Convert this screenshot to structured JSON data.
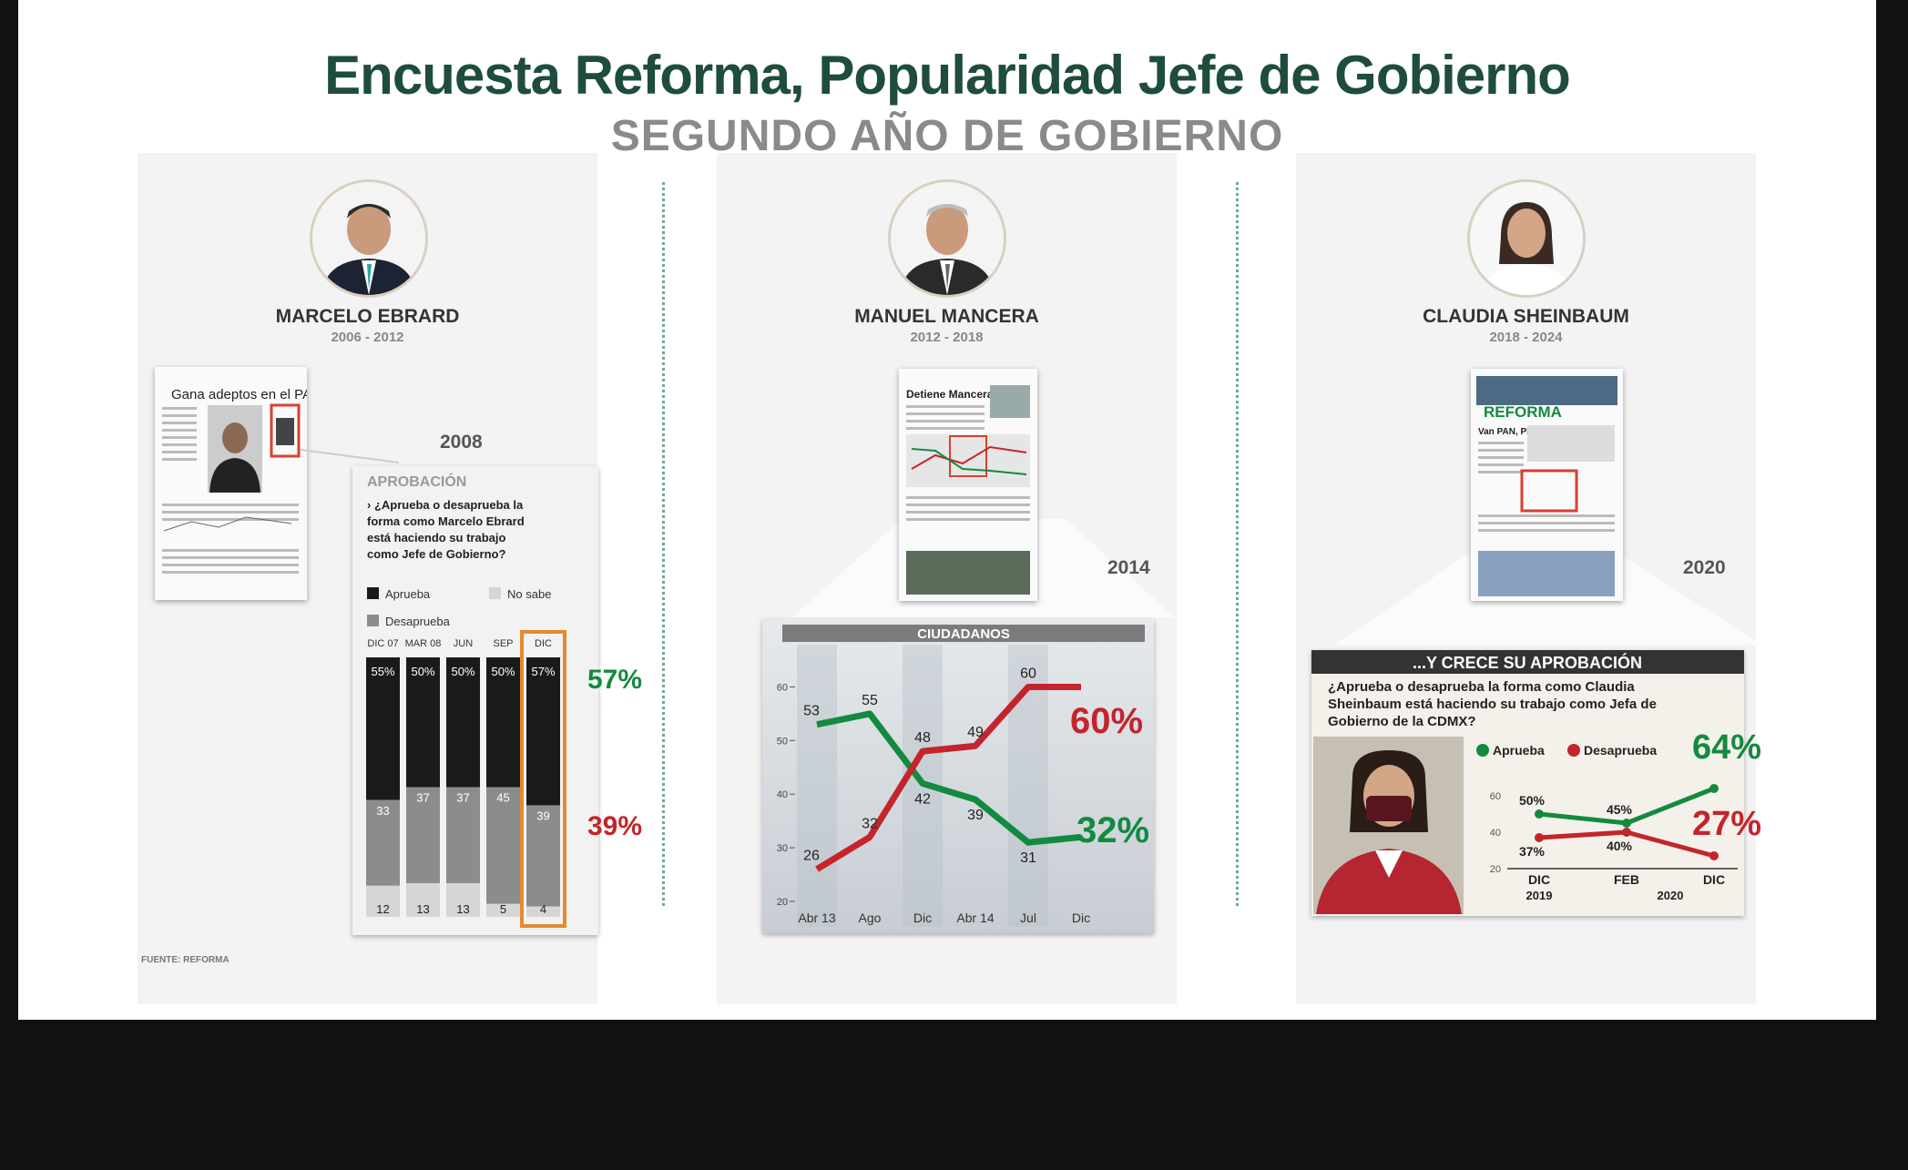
{
  "title": "Encuesta Reforma, Popularidad Jefe de Gobierno",
  "subtitle": "SEGUNDO AÑO DE GOBIERNO",
  "footer": "FUENTE: REFORMA",
  "colors": {
    "green": "#138a3f",
    "red": "#c4242b",
    "dark_green": "#1e4d3a",
    "orange": "#e38b2e"
  },
  "panels": [
    {
      "name": "MARCELO EBRARD",
      "years": "2006 - 2012",
      "survey_year": "2008",
      "newspaper_headline": "Gana adeptos en el PAN",
      "approve": "57%",
      "disapprove": "39%"
    },
    {
      "name": "MANUEL MANCERA",
      "years": "2012 - 2018",
      "survey_year": "2014",
      "newspaper_headline": "Detiene Mancera caída",
      "approve": "32%",
      "disapprove": "60%"
    },
    {
      "name": "CLAUDIA SHEINBAUM",
      "years": "2018 - 2024",
      "survey_year": "2020",
      "newspaper_masthead": "REFORMA",
      "newspaper_headline": "Van PAN, PRI y PRD en alianza",
      "approve": "64%",
      "disapprove": "27%"
    }
  ],
  "chart_data": [
    {
      "type": "bar",
      "subtype": "stacked",
      "title": "APROBACIÓN",
      "question": "› ¿Aprueba o desaprueba la forma como Marcelo Ebrard está haciendo su trabajo como Jefe de Gobierno?",
      "legend": [
        "Aprueba",
        "No sabe",
        "Desaprueba"
      ],
      "categories": [
        "DIC 07",
        "MAR 08",
        "JUN",
        "SEP",
        "DIC"
      ],
      "series": [
        {
          "name": "Aprueba",
          "values": [
            55,
            50,
            50,
            50,
            57
          ],
          "color": "#1a1a1a"
        },
        {
          "name": "Desaprueba",
          "values": [
            33,
            37,
            37,
            45,
            39
          ],
          "color": "#8c8c8c"
        },
        {
          "name": "No sabe",
          "values": [
            12,
            13,
            13,
            5,
            4
          ],
          "color": "#d6d6d6"
        }
      ],
      "value_labels": {
        "Aprueba": [
          "55%",
          "50%",
          "50%",
          "50%",
          "57%"
        ]
      },
      "highlight_category": "DIC"
    },
    {
      "type": "line",
      "title": "CIUDADANOS",
      "categories": [
        "Abr 13",
        "Ago",
        "Dic",
        "Abr 14",
        "Jul",
        "Dic"
      ],
      "series": [
        {
          "name": "Aprueba",
          "values": [
            53,
            55,
            42,
            39,
            31,
            32
          ],
          "color": "#138a3f"
        },
        {
          "name": "Desaprueba",
          "values": [
            26,
            32,
            48,
            49,
            60,
            60
          ],
          "color": "#c4242b"
        }
      ],
      "yticks": [
        20,
        30,
        40,
        50,
        60
      ],
      "ylim": [
        20,
        65
      ]
    },
    {
      "type": "line",
      "title": "...Y CRECE SU APROBACIÓN",
      "question": "¿Aprueba o desaprueba la forma como Claudia Sheinbaum está haciendo su trabajo como Jefa de Gobierno de la CDMX?",
      "categories": [
        "DIC",
        "FEB",
        "DIC"
      ],
      "category_years": [
        "2019",
        "2020"
      ],
      "series": [
        {
          "name": "Aprueba",
          "values": [
            50,
            45,
            64
          ],
          "labels": [
            "50%",
            "45%",
            ""
          ],
          "color": "#138a3f"
        },
        {
          "name": "Desaprueba",
          "values": [
            37,
            40,
            27
          ],
          "labels": [
            "37%",
            "40%",
            ""
          ],
          "color": "#c4242b"
        }
      ],
      "yticks": [
        20,
        40,
        60
      ],
      "ylim": [
        20,
        70
      ]
    }
  ]
}
